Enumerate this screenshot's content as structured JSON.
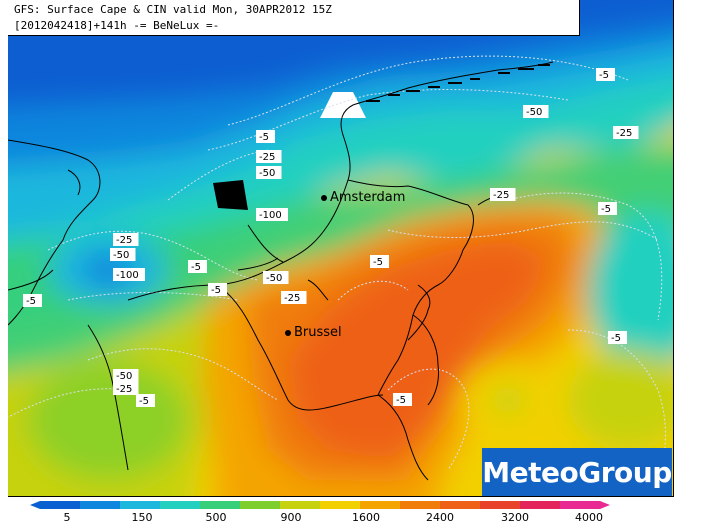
{
  "title": {
    "line1": "GFS: Surface Cape & CIN valid Mon, 30APR2012 15Z",
    "line2": "[2012042418]+141h -= BeNeLux =-"
  },
  "cities": [
    {
      "name": "Amsterdam"
    },
    {
      "name": "Brussel"
    }
  ],
  "contour_labels": [
    "-5",
    "-50",
    "-25",
    "-5",
    "-25",
    "-5",
    "-25",
    "-50",
    "-5",
    "-100",
    "-25",
    "-50",
    "-100",
    "-5",
    "-5",
    "-5",
    "-50",
    "-25",
    "-5",
    "-5",
    "-50",
    "-25",
    "-5",
    "-5"
  ],
  "legend": {
    "variable": "Surface CAPE",
    "ticks": [
      "5",
      "150",
      "500",
      "900",
      "1600",
      "2400",
      "3200",
      "4000"
    ],
    "colors": [
      "#0a5fd1",
      "#0e86dd",
      "#1cb7dd",
      "#23d0c0",
      "#38cf7a",
      "#7ecf2e",
      "#c6d20f",
      "#f2d000",
      "#f4a400",
      "#f07c0a",
      "#ee6016",
      "#e8422a",
      "#e3245a",
      "#ea2a93"
    ]
  },
  "logo": {
    "text": "MeteoGroup"
  }
}
